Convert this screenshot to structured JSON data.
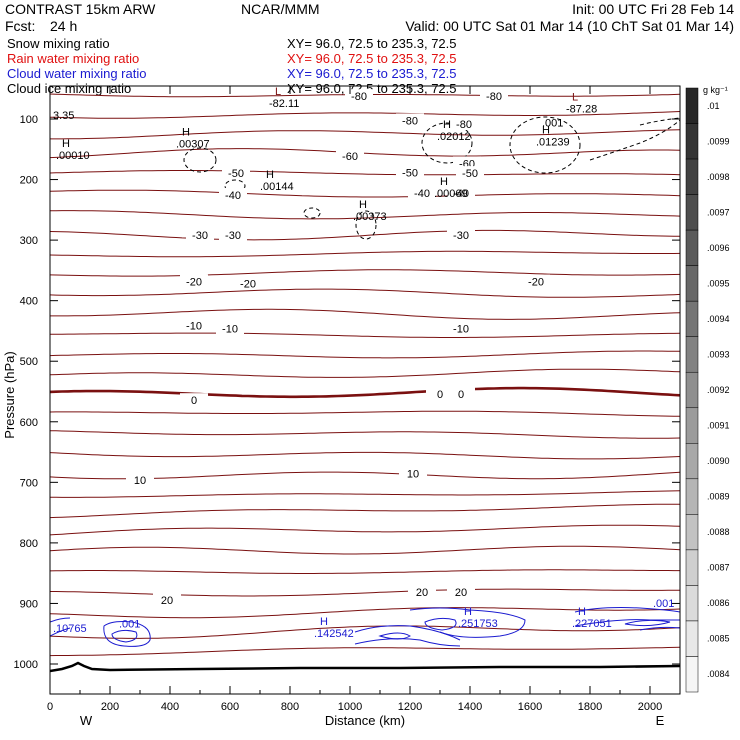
{
  "header": {
    "model": "CONTRAST 15km ARW",
    "center": "NCAR/MMM",
    "init": "Init: 00 UTC Fri 28 Feb 14",
    "fcst_label": "Fcst:",
    "fcst_value": "24 h",
    "valid": "Valid: 00 UTC Sat 01 Mar 14 (10 ChT Sat 01 Mar 14)"
  },
  "fields": [
    {
      "name": "Snow mixing ratio",
      "xy": "XY=  96.0, 72.5 to 235.3, 72.5",
      "color": "#000000"
    },
    {
      "name": "Rain water mixing ratio",
      "xy": "XY=  96.0, 72.5 to 235.3, 72.5",
      "color": "#e01010"
    },
    {
      "name": "Cloud water mixing ratio",
      "xy": "XY=  96.0, 72.5 to 235.3, 72.5",
      "color": "#1a1ad0"
    },
    {
      "name": "Cloud ice mixing ratio",
      "xy": "XY=  96.0, 72.5 to 235.3, 72.5",
      "color": "#000000"
    }
  ],
  "colorbar": {
    "unit": "g kg⁻¹",
    "labels": [
      ".01",
      ".0099",
      ".0098",
      ".0097",
      ".0096",
      ".0095",
      ".0094",
      ".0093",
      ".0092",
      ".0091",
      ".0090",
      ".0089",
      ".0088",
      ".0087",
      ".0086",
      ".0085",
      ".0084"
    ]
  },
  "chart_data": {
    "type": "cross-section contour",
    "xlabel": "Distance (km)",
    "ylabel": "Pressure (hPa)",
    "xlim": [
      0,
      2100
    ],
    "ylim": [
      1050,
      40
    ],
    "x_ticks": [
      0,
      200,
      400,
      600,
      800,
      1000,
      1200,
      1400,
      1600,
      1800,
      2000
    ],
    "y_ticks": [
      100,
      200,
      300,
      400,
      500,
      600,
      700,
      800,
      900,
      1000
    ],
    "end_labels": {
      "left": "W",
      "right": "E"
    },
    "temperature_labels": [
      {
        "x": 1030,
        "p": 64,
        "text": "-80"
      },
      {
        "x": 1480,
        "p": 64,
        "text": "-80"
      },
      {
        "x": 1200,
        "p": 104,
        "text": "-80"
      },
      {
        "x": 1380,
        "p": 110,
        "text": "-80"
      },
      {
        "x": 1000,
        "p": 163,
        "text": "-60"
      },
      {
        "x": 1390,
        "p": 175,
        "text": "-60"
      },
      {
        "x": 1200,
        "p": 190,
        "text": "-50"
      },
      {
        "x": 1400,
        "p": 191,
        "text": "-50"
      },
      {
        "x": 620,
        "p": 191,
        "text": "-50"
      },
      {
        "x": 610,
        "p": 227,
        "text": "-40"
      },
      {
        "x": 1240,
        "p": 224,
        "text": "-40"
      },
      {
        "x": 1370,
        "p": 224,
        "text": "-40"
      },
      {
        "x": 500,
        "p": 293,
        "text": "-30"
      },
      {
        "x": 610,
        "p": 293,
        "text": "-30"
      },
      {
        "x": 1370,
        "p": 293,
        "text": "-30"
      },
      {
        "x": 480,
        "p": 370,
        "text": "-20"
      },
      {
        "x": 660,
        "p": 373,
        "text": "-20"
      },
      {
        "x": 1620,
        "p": 370,
        "text": "-20"
      },
      {
        "x": 480,
        "p": 443,
        "text": "-10"
      },
      {
        "x": 600,
        "p": 448,
        "text": "-10"
      },
      {
        "x": 1370,
        "p": 448,
        "text": "-10"
      },
      {
        "x": 480,
        "p": 566,
        "text": "0"
      },
      {
        "x": 1300,
        "p": 556,
        "text": "0"
      },
      {
        "x": 1370,
        "p": 556,
        "text": "0"
      },
      {
        "x": 1210,
        "p": 687,
        "text": "10"
      },
      {
        "x": 300,
        "p": 698,
        "text": "10"
      },
      {
        "x": 1240,
        "p": 883,
        "text": "20"
      },
      {
        "x": 1370,
        "p": 883,
        "text": "20"
      },
      {
        "x": 390,
        "p": 896,
        "text": "20"
      }
    ],
    "extrema_labels": [
      {
        "x": 730,
        "p": 80,
        "kind": "L",
        "value": "-82.11"
      },
      {
        "x": 1720,
        "p": 89,
        "kind": "L",
        "value": "-87.28"
      },
      {
        "x": 10,
        "p": 100,
        "kind": "",
        "value": "3.35"
      },
      {
        "x": 1640,
        "p": 112,
        "kind": "",
        "value": ".001"
      },
      {
        "x": 20,
        "p": 166,
        "kind": "H",
        "value": ".00010"
      },
      {
        "x": 420,
        "p": 147,
        "kind": "H",
        "value": ".00307"
      },
      {
        "x": 1290,
        "p": 135,
        "kind": "H",
        "value": ".02012"
      },
      {
        "x": 1620,
        "p": 144,
        "kind": "H",
        "value": ".01239"
      },
      {
        "x": 700,
        "p": 217,
        "kind": "H",
        "value": ".00144"
      },
      {
        "x": 1010,
        "p": 267,
        "kind": "H",
        "value": ".00373"
      },
      {
        "x": 1280,
        "p": 229,
        "kind": "H",
        "value": ".00069"
      },
      {
        "x": 10,
        "p": 947,
        "kind": "",
        "value": ".10765"
      },
      {
        "x": 230,
        "p": 940,
        "kind": "",
        "value": ".001"
      },
      {
        "x": 880,
        "p": 955,
        "kind": "H",
        "value": ".142542"
      },
      {
        "x": 1360,
        "p": 939,
        "kind": "H",
        "value": ".251753"
      },
      {
        "x": 1740,
        "p": 939,
        "kind": "H",
        "value": ".227051"
      },
      {
        "x": 2010,
        "p": 906,
        "kind": "",
        "value": ".001"
      }
    ]
  }
}
